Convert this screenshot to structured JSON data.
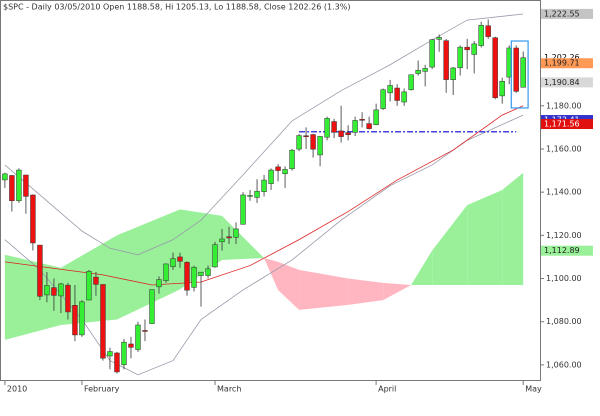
{
  "chart_data": {
    "type": "candlestick",
    "title": "$SPC - Daily 03/05/2010 Open 1188.58, Hi 1205.13, Lo 1188.58, Close 1202.26 (1.3%)",
    "up_color": "#33ee33",
    "down_color": "#ee1111",
    "open": [
      1145.68,
      1147.72,
      1136.03,
      1147.95,
      1138.68,
      1115.49,
      1092.4,
      1095.8,
      1091.94,
      1096.93,
      1087.61,
      1073.89,
      1090.05,
      1100.67,
      1097.25,
      1064.12,
      1065.51,
      1060.06,
      1069.68,
      1067.1,
      1075.95,
      1079.13,
      1096.14,
      1099.03,
      1105.49,
      1110.0,
      1107.49,
      1095.89,
      1101.36,
      1101.36,
      1105.36,
      1117.01,
      1119.36,
      1119.12,
      1125.12,
      1138.4,
      1137.56,
      1140.22,
      1143.96,
      1151.71,
      1148.53,
      1150.83,
      1159.94,
      1166.13,
      1166.68,
      1157.25,
      1165.45,
      1172.71,
      1168.36,
      1167.58,
      1167.71,
      1173.75,
      1171.75,
      1171.23,
      1178.71,
      1186.01,
      1188.23,
      1181.75,
      1187.47,
      1194.94,
      1195.94,
      1197.95,
      1210.77,
      1210.17,
      1192.06,
      1197.6,
      1207.16,
      1203.79,
      1207.87,
      1217.07,
      1211.52,
      1184.59,
      1193.3,
      1206.77,
      1188.58
    ],
    "high": [
      1149,
      1148,
      1151,
      1148,
      1139,
      1115,
      1103,
      1100,
      1098,
      1098,
      1097,
      1090,
      1104,
      1103,
      1097,
      1068,
      1066,
      1072,
      1073,
      1080,
      1081,
      1095,
      1101,
      1107,
      1112,
      1112,
      1108,
      1106,
      1103,
      1106,
      1117,
      1123,
      1124,
      1126,
      1140,
      1141,
      1146,
      1148,
      1151,
      1153,
      1152,
      1160,
      1167,
      1170,
      1167,
      1166,
      1175,
      1174,
      1180,
      1171,
      1175,
      1177,
      1175,
      1181,
      1188,
      1192,
      1190,
      1188,
      1194,
      1201,
      1199,
      1211,
      1213,
      1211,
      1198,
      1208,
      1211,
      1210,
      1219,
      1220,
      1212,
      1193,
      1208,
      1208,
      1205.13
    ],
    "low": [
      1142,
      1131,
      1135,
      1130,
      1113,
      1090,
      1089,
      1085,
      1084,
      1081,
      1071,
      1073,
      1090,
      1092,
      1062,
      1058,
      1056,
      1058,
      1063,
      1066,
      1071,
      1079,
      1093,
      1098,
      1104,
      1105,
      1092,
      1094,
      1087,
      1100,
      1105,
      1113,
      1116,
      1116,
      1125,
      1136,
      1135,
      1138,
      1141,
      1145,
      1142,
      1150,
      1159,
      1160,
      1156,
      1152,
      1164,
      1165,
      1163,
      1164,
      1166,
      1170,
      1169,
      1171,
      1178,
      1182,
      1180,
      1180,
      1187,
      1194,
      1189,
      1197,
      1205,
      1186,
      1185,
      1194,
      1197,
      1195,
      1207,
      1211,
      1183,
      1181,
      1190,
      1186,
      1188.58
    ],
    "close": [
      1148.46,
      1136.03,
      1150.23,
      1138.04,
      1116.48,
      1091.76,
      1096.78,
      1092.17,
      1097.5,
      1084.53,
      1073.87,
      1089.19,
      1103.32,
      1097.28,
      1063.11,
      1066.19,
      1056.74,
      1070.52,
      1068.13,
      1078.47,
      1075.51,
      1094.87,
      1099.51,
      1106.75,
      1109.17,
      1108.01,
      1094.6,
      1105.24,
      1102.94,
      1104.49,
      1115.71,
      1118.31,
      1118.79,
      1122.97,
      1138.7,
      1138.5,
      1140.45,
      1145.61,
      1150.24,
      1149.99,
      1150.51,
      1159.46,
      1166.21,
      1165.83,
      1159.9,
      1165.81,
      1174.17,
      1167.72,
      1165.73,
      1166.59,
      1173.22,
      1173.27,
      1169.43,
      1178.1,
      1187.44,
      1189.44,
      1182.45,
      1186.44,
      1194.37,
      1196.48,
      1197.3,
      1210.65,
      1211.67,
      1192.13,
      1197.52,
      1207.17,
      1205.94,
      1208.67,
      1217.28,
      1212.05,
      1183.71,
      1191.36,
      1206.78,
      1186.69,
      1202.26
    ],
    "cloud": {
      "x": [
        0,
        8,
        16,
        25,
        31,
        37,
        39,
        42,
        49,
        54,
        58,
        61,
        66,
        71,
        74
      ],
      "span_a": [
        1111,
        1105,
        1120,
        1132,
        1129,
        1109.5,
        1094.7,
        1085.5,
        1087.8,
        1090,
        1097,
        1113,
        1134,
        1141,
        1149
      ],
      "span_b": [
        1071.6,
        1078.5,
        1081,
        1095,
        1108.6,
        1109.5,
        1107.7,
        1104,
        1100,
        1098,
        1097,
        1097,
        1097,
        1097,
        1097
      ],
      "bull_color": "#99f099",
      "bear_color": "#ffb6c1"
    },
    "moving_average": {
      "x": [
        0,
        14,
        21,
        28,
        35,
        42,
        49,
        56,
        64,
        71,
        74
      ],
      "values": [
        1107.7,
        1101.7,
        1097,
        1098.4,
        1106,
        1118,
        1131,
        1145.6,
        1159.5,
        1175.7,
        1180
      ],
      "color": "#dd2222"
    },
    "bollinger": {
      "x": [
        0,
        5,
        11,
        15,
        19,
        24,
        28,
        34,
        41,
        48,
        55,
        61,
        66,
        74
      ],
      "upper": [
        1152.6,
        1138.7,
        1122,
        1114,
        1111,
        1118,
        1127,
        1148,
        1173,
        1187,
        1199,
        1210.5,
        1219.7,
        1222.5
      ],
      "lower": [
        1118,
        1104,
        1081,
        1062,
        1055.4,
        1062,
        1081,
        1094.7,
        1108.6,
        1127,
        1143,
        1152.6,
        1164,
        1175.7
      ],
      "color": "#9999aa"
    },
    "support_line": {
      "value": 1168,
      "from": 42,
      "to": 73,
      "color": "#4444dd"
    },
    "highlight_box": {
      "from": 73,
      "to": 74,
      "top": 1210,
      "bottom": 1179,
      "color": "#3399ee"
    },
    "xlim": [
      -0.7,
      76.4
    ],
    "ylim": [
      1053,
      1229
    ],
    "xticks": [
      {
        "value": 0,
        "label": "2010"
      },
      {
        "value": 11,
        "label": "February"
      },
      {
        "value": 30,
        "label": "March"
      },
      {
        "value": 53,
        "label": "April"
      },
      {
        "value": 74,
        "label": "May"
      }
    ],
    "yticks": [
      {
        "value": 1060,
        "label": "1,060.00"
      },
      {
        "value": 1080,
        "label": "1,080.00"
      },
      {
        "value": 1100,
        "label": "1,100.00"
      },
      {
        "value": 1120,
        "label": "1,120.00"
      },
      {
        "value": 1140,
        "label": "1,140.00"
      },
      {
        "value": 1160,
        "label": "1,160.00"
      },
      {
        "value": 1180,
        "label": "1,180.00"
      }
    ],
    "price_labels": [
      {
        "value": 1222.55,
        "label": "1,222.55",
        "color": "#c4c4c4",
        "text_color": "#222222"
      },
      {
        "value": 1202.26,
        "label": "1,202.26",
        "color": "#ffffff",
        "text_color": "#000000"
      },
      {
        "value": 1199.71,
        "label": "1,199.71",
        "color": "#ff9955",
        "text_color": "#222222"
      },
      {
        "value": 1190.84,
        "label": "1,190.84",
        "color": "#d8d8d8",
        "text_color": "#222222"
      },
      {
        "value": 1173.41,
        "label": "1,173.41",
        "color": "#3333cc",
        "text_color": "#ffffff"
      },
      {
        "value": 1171.56,
        "label": "1,171.56",
        "color": "#e01010",
        "text_color": "#ffffff"
      },
      {
        "value": 1112.89,
        "label": "1,112.89",
        "color": "#99f099",
        "text_color": "#222222"
      }
    ]
  }
}
